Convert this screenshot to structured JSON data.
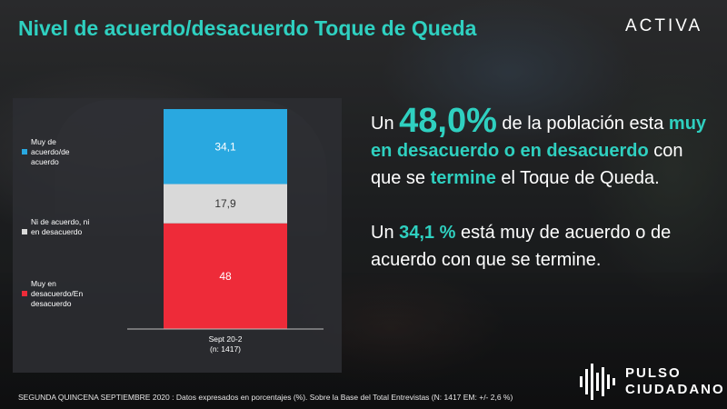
{
  "header": {
    "title": "Nivel de acuerdo/desacuerdo Toque de Queda",
    "brand": "ACTIVA"
  },
  "chart_data": {
    "type": "bar",
    "stacked": true,
    "categories": [
      "Sept 20-2 (n: 1417)"
    ],
    "category_label_lines": [
      "Sept 20-2",
      "(n: 1417)"
    ],
    "series": [
      {
        "name": "Muy de acuerdo/de acuerdo",
        "legend_lines": [
          "Muy de",
          "acuerdo/de",
          "acuerdo"
        ],
        "values": [
          34.1
        ],
        "label": "34,1",
        "color": "#29a8e0",
        "label_color": "#ffffff"
      },
      {
        "name": "Ni de acuerdo, ni en desacuerdo",
        "legend_lines": [
          "Ni de acuerdo, ni",
          "en desacuerdo"
        ],
        "values": [
          17.9
        ],
        "label": "17,9",
        "color": "#d9d9d9",
        "label_color": "#333333"
      },
      {
        "name": "Muy en desacuerdo/En desacuerdo",
        "legend_lines": [
          "Muy en",
          "desacuerdo/En",
          "desacuerdo"
        ],
        "values": [
          48
        ],
        "label": "48",
        "color": "#ee2b39",
        "label_color": "#ffffff"
      }
    ],
    "ylim": [
      0,
      100
    ],
    "title": "",
    "xlabel": "",
    "ylabel": ""
  },
  "narrative": {
    "p1": {
      "a": "Un ",
      "pct": "48,0%",
      "b": " de la población esta ",
      "hl1": "muy  en desacuerdo o en desacuerdo",
      "c": " con que se ",
      "hl2": "termine",
      "d": " el Toque de Queda."
    },
    "p2": {
      "a": "Un ",
      "hl": "34,1 %",
      "b": " está muy de acuerdo o de acuerdo con que se termine."
    }
  },
  "footer": {
    "note": "SEGUNDA QUINCENA  SEPTIEMBRE 2020  : Datos expresados en porcentajes (%). Sobre la Base del Total Entrevistas (N: 1417  EM: +/- 2,6 %)"
  },
  "logo": {
    "line1": "PULSO",
    "line2": "CIUDADANO",
    "icon": "pulse-bars-icon"
  }
}
